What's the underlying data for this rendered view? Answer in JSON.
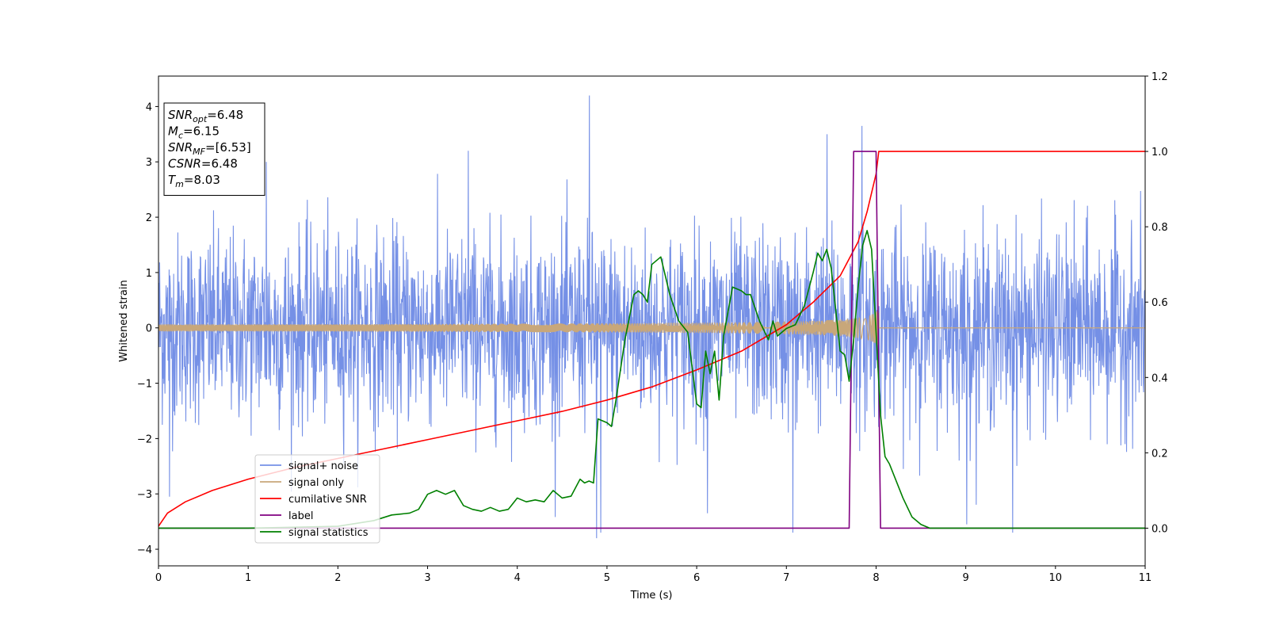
{
  "chart_data": {
    "type": "line",
    "xlabel": "Time (s)",
    "ylabel": "Whitened strain",
    "xlim": [
      0,
      11
    ],
    "ylim": [
      -4.3,
      4.55
    ],
    "y2lim": [
      -0.1,
      1.2
    ],
    "grid": false,
    "legend_position": "lower-left",
    "x_ticks": [
      {
        "value": 0,
        "label": "0"
      },
      {
        "value": 1,
        "label": "1"
      },
      {
        "value": 2,
        "label": "2"
      },
      {
        "value": 3,
        "label": "3"
      },
      {
        "value": 4,
        "label": "4"
      },
      {
        "value": 5,
        "label": "5"
      },
      {
        "value": 6,
        "label": "6"
      },
      {
        "value": 7,
        "label": "7"
      },
      {
        "value": 8,
        "label": "8"
      },
      {
        "value": 9,
        "label": "9"
      },
      {
        "value": 10,
        "label": "10"
      },
      {
        "value": 11,
        "label": "11"
      }
    ],
    "y_ticks": [
      {
        "value": -4,
        "label": "−4"
      },
      {
        "value": -3,
        "label": "−3"
      },
      {
        "value": -2,
        "label": "−2"
      },
      {
        "value": -1,
        "label": "−1"
      },
      {
        "value": 0,
        "label": "0"
      },
      {
        "value": 1,
        "label": "1"
      },
      {
        "value": 2,
        "label": "2"
      },
      {
        "value": 3,
        "label": "3"
      },
      {
        "value": 4,
        "label": "4"
      }
    ],
    "y2_ticks": [
      {
        "value": 0.0,
        "label": "0.0"
      },
      {
        "value": 0.2,
        "label": "0.2"
      },
      {
        "value": 0.4,
        "label": "0.4"
      },
      {
        "value": 0.6,
        "label": "0.6"
      },
      {
        "value": 0.8,
        "label": "0.8"
      },
      {
        "value": 1.0,
        "label": "1.0"
      },
      {
        "value": 1.2,
        "label": "1.2"
      }
    ],
    "annotation": {
      "lines": [
        {
          "name": "SNR",
          "sub": "opt",
          "value": "=6.48"
        },
        {
          "name": "M",
          "sub": "c",
          "value": "=6.15"
        },
        {
          "name": "SNR",
          "sub": "MF",
          "value": "=[6.53]"
        },
        {
          "name": "CSNR",
          "sub": "",
          "value": "=6.48"
        },
        {
          "name": "T",
          "sub": "m",
          "value": "=8.03"
        }
      ]
    },
    "series": [
      {
        "name": "signal+ noise",
        "axis": "left",
        "color": "#7590e6",
        "kind": "noise",
        "std": 0.85,
        "t_range": [
          0,
          11
        ],
        "spikes": [
          {
            "x": 4.8,
            "y": 4.2
          },
          {
            "x": 7.84,
            "y": 3.65
          },
          {
            "x": 4.88,
            "y": -3.8
          },
          {
            "x": 4.93,
            "y": -3.7
          },
          {
            "x": 7.07,
            "y": -3.7
          },
          {
            "x": 9.52,
            "y": -3.7
          },
          {
            "x": 9.01,
            "y": -3.55
          },
          {
            "x": 0.12,
            "y": -3.05
          },
          {
            "x": 1.2,
            "y": 3.0
          },
          {
            "x": 3.45,
            "y": 3.2
          },
          {
            "x": 6.12,
            "y": -3.35
          },
          {
            "x": 7.45,
            "y": 3.5
          }
        ]
      },
      {
        "name": "signal only",
        "axis": "left",
        "color": "#c8a77a",
        "kind": "chirp",
        "t_start": 0,
        "t_merge": 8.03,
        "t_end": 11,
        "amplitude_start": 0.02,
        "amplitude_merge": 0.35
      },
      {
        "name": "cumilative SNR",
        "axis": "right",
        "color": "#ff0000",
        "x": [
          0,
          0.1,
          0.3,
          0.6,
          1,
          1.5,
          2,
          2.5,
          3,
          3.5,
          4,
          4.5,
          5,
          5.5,
          6,
          6.5,
          7,
          7.3,
          7.6,
          7.8,
          7.9,
          8.0,
          8.03,
          11
        ],
        "y": [
          0.005,
          0.04,
          0.07,
          0.1,
          0.13,
          0.16,
          0.185,
          0.21,
          0.235,
          0.26,
          0.285,
          0.31,
          0.34,
          0.375,
          0.42,
          0.47,
          0.54,
          0.6,
          0.67,
          0.76,
          0.84,
          0.94,
          1.0,
          1.0
        ]
      },
      {
        "name": "label",
        "axis": "right",
        "color": "#800080",
        "x": [
          0,
          7.7,
          7.75,
          8.0,
          8.05,
          11
        ],
        "y": [
          0,
          0,
          1.0,
          1.0,
          0,
          0
        ]
      },
      {
        "name": "signal statistics",
        "axis": "right",
        "color": "#008000",
        "x": [
          0,
          1,
          2,
          2.4,
          2.6,
          2.8,
          2.9,
          3.0,
          3.1,
          3.2,
          3.3,
          3.4,
          3.5,
          3.6,
          3.7,
          3.8,
          3.9,
          4.0,
          4.1,
          4.2,
          4.3,
          4.4,
          4.5,
          4.6,
          4.7,
          4.75,
          4.8,
          4.85,
          4.9,
          5.0,
          5.05,
          5.1,
          5.2,
          5.3,
          5.35,
          5.4,
          5.45,
          5.5,
          5.6,
          5.7,
          5.8,
          5.9,
          6.0,
          6.05,
          6.1,
          6.15,
          6.2,
          6.25,
          6.3,
          6.4,
          6.5,
          6.55,
          6.6,
          6.7,
          6.8,
          6.85,
          6.9,
          7.0,
          7.1,
          7.2,
          7.3,
          7.35,
          7.4,
          7.45,
          7.5,
          7.6,
          7.65,
          7.7,
          7.75,
          7.8,
          7.85,
          7.9,
          7.95,
          8.0,
          8.05,
          8.1,
          8.15,
          8.2,
          8.3,
          8.4,
          8.5,
          8.6,
          9,
          10,
          11
        ],
        "y": [
          0.0,
          0.0,
          0.005,
          0.02,
          0.035,
          0.04,
          0.05,
          0.09,
          0.1,
          0.09,
          0.1,
          0.06,
          0.05,
          0.045,
          0.055,
          0.045,
          0.05,
          0.08,
          0.07,
          0.075,
          0.07,
          0.1,
          0.08,
          0.085,
          0.13,
          0.12,
          0.125,
          0.12,
          0.29,
          0.28,
          0.27,
          0.34,
          0.5,
          0.62,
          0.63,
          0.62,
          0.6,
          0.7,
          0.72,
          0.62,
          0.55,
          0.52,
          0.33,
          0.32,
          0.47,
          0.41,
          0.47,
          0.34,
          0.51,
          0.64,
          0.63,
          0.62,
          0.62,
          0.55,
          0.5,
          0.55,
          0.51,
          0.53,
          0.54,
          0.59,
          0.68,
          0.73,
          0.71,
          0.74,
          0.69,
          0.47,
          0.46,
          0.39,
          0.5,
          0.64,
          0.75,
          0.79,
          0.74,
          0.52,
          0.3,
          0.19,
          0.17,
          0.14,
          0.08,
          0.03,
          0.01,
          0.0,
          0.0,
          0.0,
          0.0
        ]
      }
    ]
  }
}
